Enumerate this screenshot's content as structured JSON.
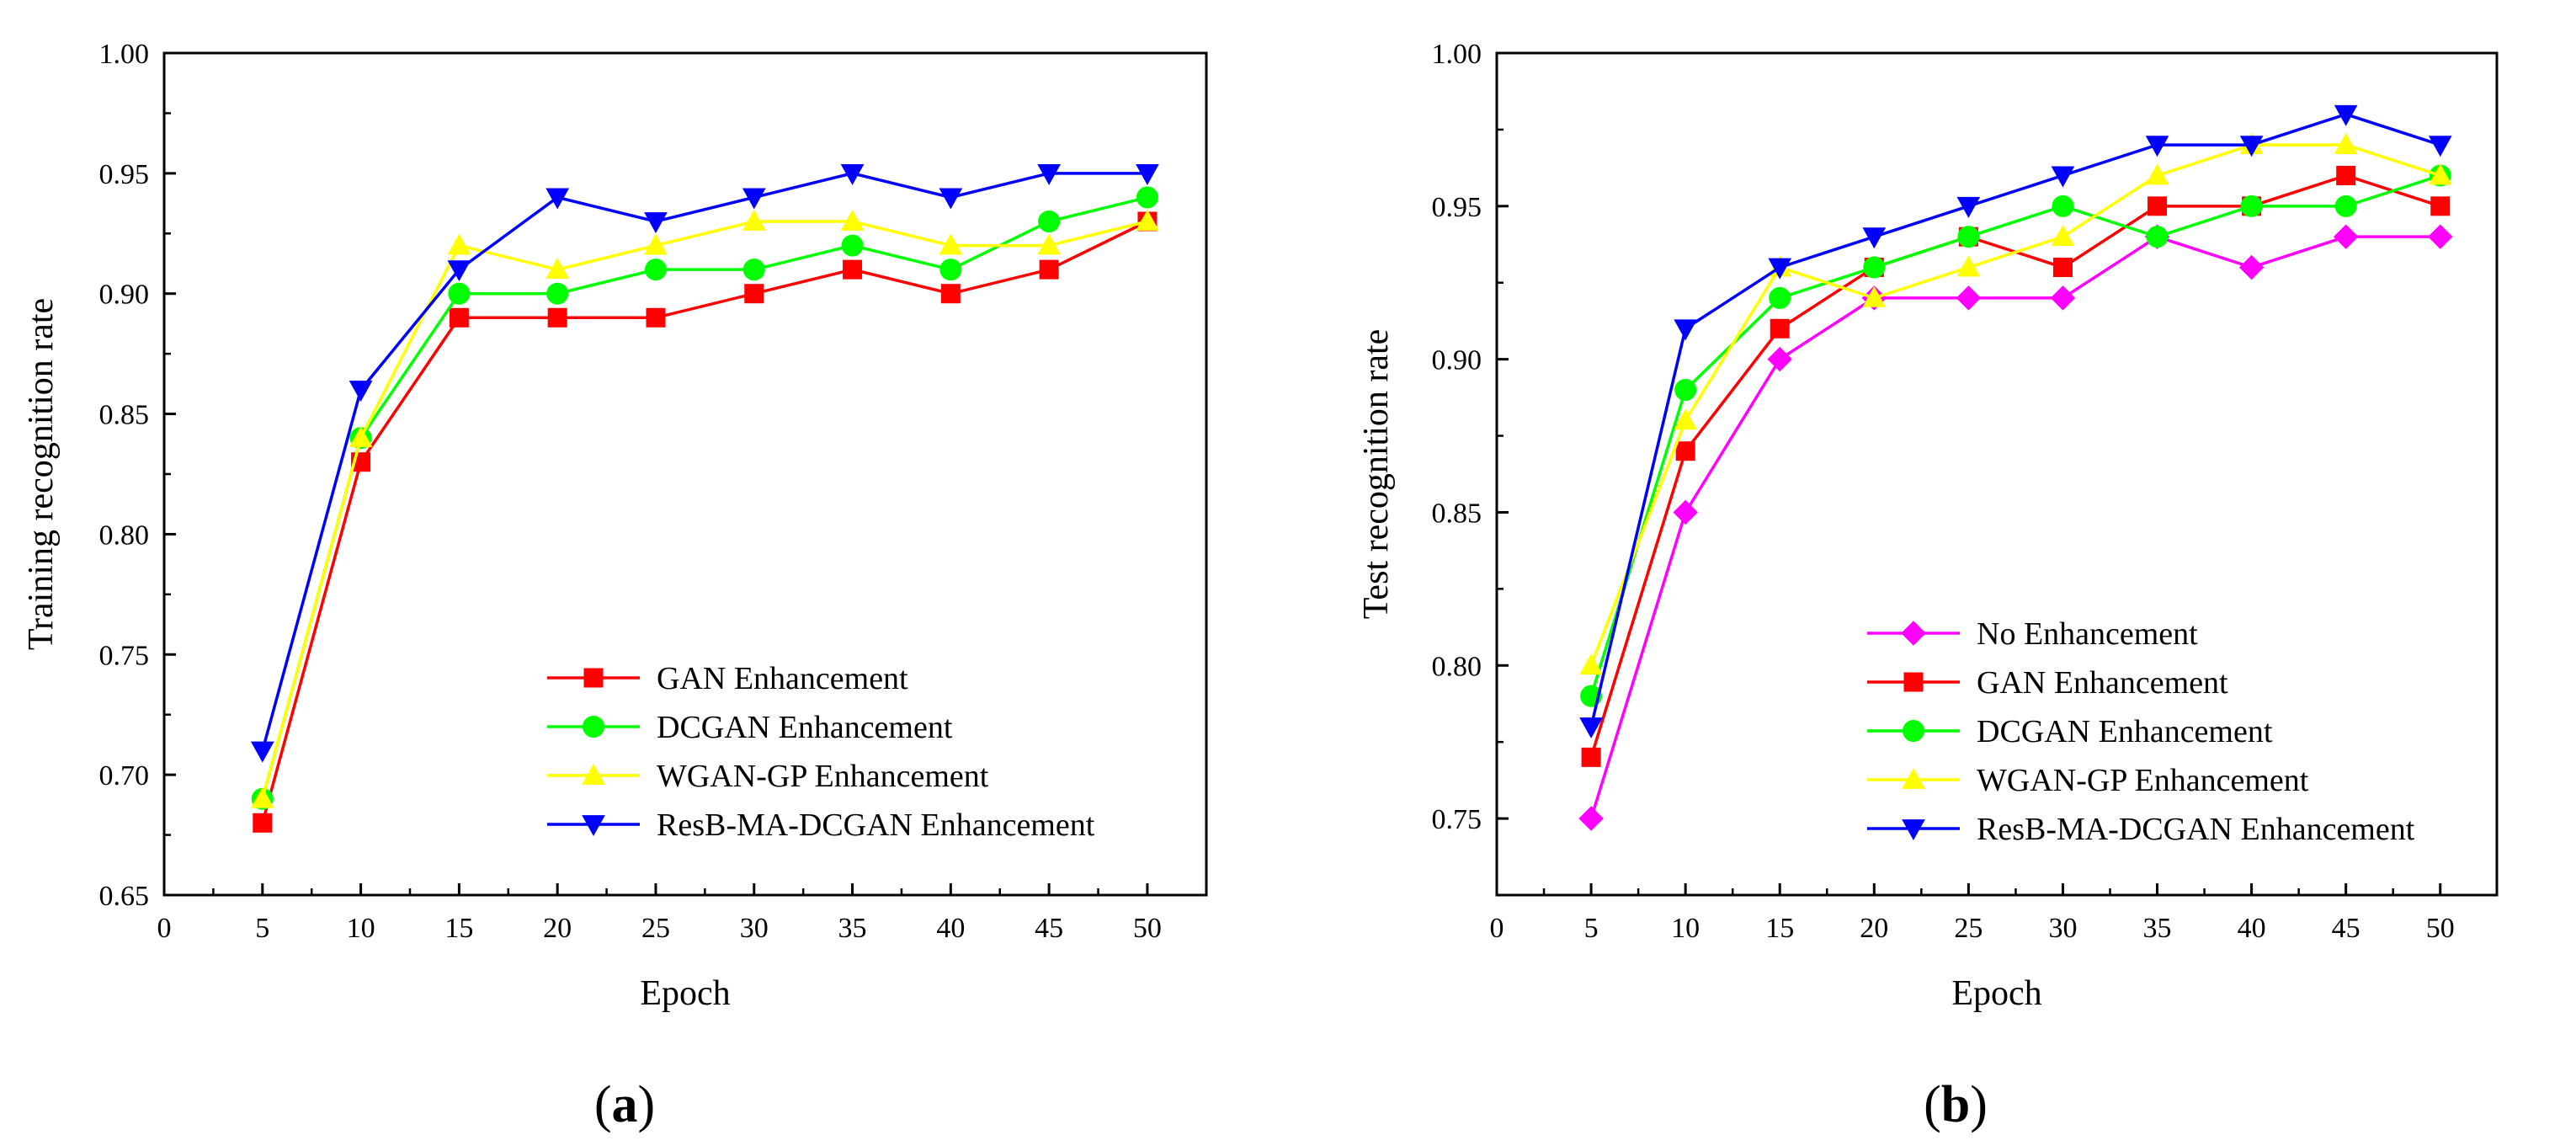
{
  "chart_data": [
    {
      "type": "line",
      "panel_label": {
        "open": "(",
        "letter": "a",
        "close": ")"
      },
      "xlabel": "Epoch",
      "ylabel": "Training recognition rate",
      "xlim": [
        0,
        53
      ],
      "ylim": [
        0.65,
        1.0
      ],
      "xticks": [
        0,
        5,
        10,
        15,
        20,
        25,
        30,
        35,
        40,
        45,
        50
      ],
      "yticks": [
        0.65,
        0.7,
        0.75,
        0.8,
        0.85,
        0.9,
        0.95,
        1.0
      ],
      "x": [
        5,
        10,
        15,
        20,
        25,
        30,
        35,
        40,
        45,
        50
      ],
      "legend_position": "lower-right",
      "series": [
        {
          "name": "GAN  Enhancement",
          "color": "#ff0000",
          "marker": "square",
          "values": [
            0.68,
            0.83,
            0.89,
            0.89,
            0.89,
            0.9,
            0.91,
            0.9,
            0.91,
            0.93
          ]
        },
        {
          "name": "DCGAN  Enhancement",
          "color": "#00ff00",
          "marker": "circle",
          "values": [
            0.69,
            0.84,
            0.9,
            0.9,
            0.91,
            0.91,
            0.92,
            0.91,
            0.93,
            0.94
          ]
        },
        {
          "name": "WGAN-GP  Enhancement",
          "color": "#ffff00",
          "marker": "triangle-up",
          "values": [
            0.69,
            0.84,
            0.92,
            0.91,
            0.92,
            0.93,
            0.93,
            0.92,
            0.92,
            0.93
          ]
        },
        {
          "name": "ResB-MA-DCGAN  Enhancement",
          "color": "#0000ff",
          "marker": "triangle-down",
          "values": [
            0.71,
            0.86,
            0.91,
            0.94,
            0.93,
            0.94,
            0.95,
            0.94,
            0.95,
            0.95
          ]
        }
      ]
    },
    {
      "type": "line",
      "panel_label": {
        "open": "(",
        "letter": "b",
        "close": ")"
      },
      "xlabel": "Epoch",
      "ylabel": "Test recognition rate",
      "xlim": [
        0,
        53
      ],
      "ylim": [
        0.725,
        1.0
      ],
      "xticks": [
        0,
        5,
        10,
        15,
        20,
        25,
        30,
        35,
        40,
        45,
        50
      ],
      "yticks": [
        0.75,
        0.8,
        0.85,
        0.9,
        0.95,
        1.0
      ],
      "x": [
        5,
        10,
        15,
        20,
        25,
        30,
        35,
        40,
        45,
        50
      ],
      "legend_position": "lower-right",
      "series": [
        {
          "name": "No Enhancement",
          "color": "#ff00ff",
          "marker": "diamond",
          "values": [
            0.75,
            0.85,
            0.9,
            0.92,
            0.92,
            0.92,
            0.94,
            0.93,
            0.94,
            0.94
          ]
        },
        {
          "name": "GAN Enhancement",
          "color": "#ff0000",
          "marker": "square",
          "values": [
            0.77,
            0.87,
            0.91,
            0.93,
            0.94,
            0.93,
            0.95,
            0.95,
            0.96,
            0.95
          ]
        },
        {
          "name": "DCGAN Enhancement",
          "color": "#00ff00",
          "marker": "circle",
          "values": [
            0.79,
            0.89,
            0.92,
            0.93,
            0.94,
            0.95,
            0.94,
            0.95,
            0.95,
            0.96
          ]
        },
        {
          "name": "WGAN-GP Enhancement",
          "color": "#ffff00",
          "marker": "triangle-up",
          "values": [
            0.8,
            0.88,
            0.93,
            0.92,
            0.93,
            0.94,
            0.96,
            0.97,
            0.97,
            0.96
          ]
        },
        {
          "name": "ResB-MA-DCGAN Enhancement",
          "color": "#0000ff",
          "marker": "triangle-down",
          "values": [
            0.78,
            0.91,
            0.93,
            0.94,
            0.95,
            0.96,
            0.97,
            0.97,
            0.98,
            0.97
          ]
        }
      ]
    }
  ]
}
